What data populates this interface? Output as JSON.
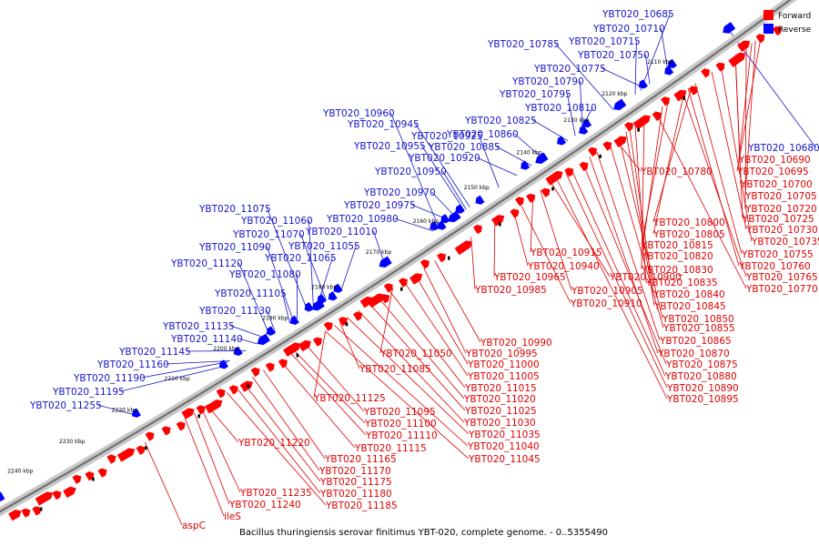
{
  "caption": "Bacillus thuringiensis serovar finitimus YBT-020, complete genome. - 0..5355490",
  "legend": [
    {
      "label": "Forward",
      "color": "#ff0000"
    },
    {
      "label": "Reverse",
      "color": "#0000ff"
    }
  ],
  "colors": {
    "forward": "#ff0000",
    "reverse": "#0000ff",
    "forward_label": "#dd0000",
    "reverse_label": "#1414c8",
    "backbone": "#808080"
  },
  "scale_labels": [
    "2110 kbp",
    "2120 kbp",
    "2130 kbp",
    "2140 kbp",
    "2150 kbp",
    "2160 kbp",
    "2170 kbp",
    "2180 kbp",
    "2190 kbp",
    "2200 kbp",
    "2210 kbp",
    "2220 kbp",
    "2230 kbp",
    "2240 kbp"
  ],
  "reverse_labels": [
    "YBT020_10685",
    "YBT020_10710",
    "YBT020_10715",
    "YBT020_10750",
    "YBT020_10775",
    "YBT020_10785",
    "YBT020_10790",
    "YBT020_10795",
    "YBT020_10810",
    "YBT020_10825",
    "YBT020_10860",
    "YBT020_10885",
    "YBT020_10920",
    "YBT020_10925",
    "YBT020_10945",
    "YBT020_10950",
    "YBT020_10955",
    "YBT020_10960",
    "YBT020_10970",
    "YBT020_10975",
    "YBT020_10980",
    "YBT020_11010",
    "YBT020_11055",
    "YBT020_11060",
    "YBT020_11065",
    "YBT020_11070",
    "YBT020_11075",
    "YBT020_11080",
    "YBT020_11090",
    "YBT020_11105",
    "YBT020_11120",
    "YBT020_11130",
    "YBT020_11135",
    "YBT020_11140",
    "YBT020_11145",
    "YBT020_11160",
    "YBT020_11190",
    "YBT020_11195",
    "YBT020_11255",
    "YBT020_10680"
  ],
  "forward_labels": [
    "YBT020_10690",
    "YBT020_10695",
    "YBT020_10700",
    "YBT020_10705",
    "YBT020_10720",
    "YBT020_10725",
    "YBT020_10730",
    "YBT020_10735",
    "YBT020_10755",
    "YBT020_10760",
    "YBT020_10765",
    "YBT020_10770",
    "YBT020_10780",
    "YBT020_10800",
    "YBT020_10805",
    "YBT020_10815",
    "YBT020_10820",
    "YBT020_10830",
    "YBT020_10835",
    "YBT020_10840",
    "YBT020_10845",
    "YBT020_10850",
    "YBT020_10855",
    "YBT020_10865",
    "YBT020_10870",
    "YBT020_10875",
    "YBT020_10880",
    "YBT020_10890",
    "YBT020_10895",
    "YBT020_10915",
    "YBT020_10940",
    "YBT020_10965",
    "YBT020_10900",
    "YBT020_10905",
    "YBT020_10910",
    "YBT020_10985",
    "YBT020_10990",
    "YBT020_10995",
    "YBT020_11000",
    "YBT020_11005",
    "YBT020_11015",
    "YBT020_11020",
    "YBT020_11025",
    "YBT020_11030",
    "YBT020_11035",
    "YBT020_11040",
    "YBT020_11045",
    "YBT020_11050",
    "YBT020_11085",
    "YBT020_11125",
    "YBT020_11095",
    "YBT020_11100",
    "YBT020_11110",
    "YBT020_11115",
    "YBT020_11165",
    "YBT020_11170",
    "YBT020_11175",
    "YBT020_11180",
    "YBT020_11185",
    "YBT020_11220",
    "YBT020_11235",
    "YBT020_11240",
    "ileS",
    "aspC"
  ]
}
